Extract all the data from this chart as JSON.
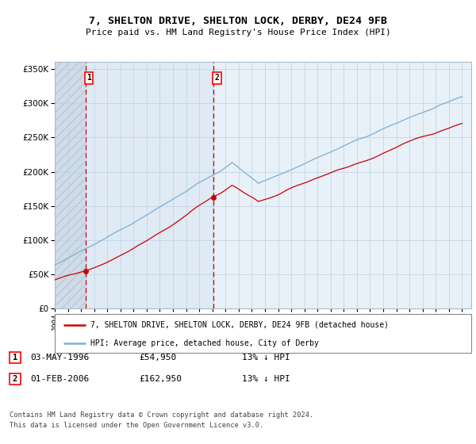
{
  "title": "7, SHELTON DRIVE, SHELTON LOCK, DERBY, DE24 9FB",
  "subtitle": "Price paid vs. HM Land Registry's House Price Index (HPI)",
  "year_start": 1994,
  "year_end": 2025,
  "ylim": [
    0,
    360000
  ],
  "yticks": [
    0,
    50000,
    100000,
    150000,
    200000,
    250000,
    300000,
    350000
  ],
  "sale1_year": 1996.35,
  "sale1_price": 54950,
  "sale2_year": 2006.08,
  "sale2_price": 162950,
  "plot_bg": "#e8f0f8",
  "red_color": "#cc0000",
  "blue_color": "#7aafd4",
  "legend1": "7, SHELTON DRIVE, SHELTON LOCK, DERBY, DE24 9FB (detached house)",
  "legend2": "HPI: Average price, detached house, City of Derby",
  "ann1_date": "03-MAY-1996",
  "ann1_price": "£54,950",
  "ann1_hpi": "13% ↓ HPI",
  "ann2_date": "01-FEB-2006",
  "ann2_price": "£162,950",
  "ann2_hpi": "13% ↓ HPI",
  "footer": "Contains HM Land Registry data © Crown copyright and database right 2024.\nThis data is licensed under the Open Government Licence v3.0."
}
